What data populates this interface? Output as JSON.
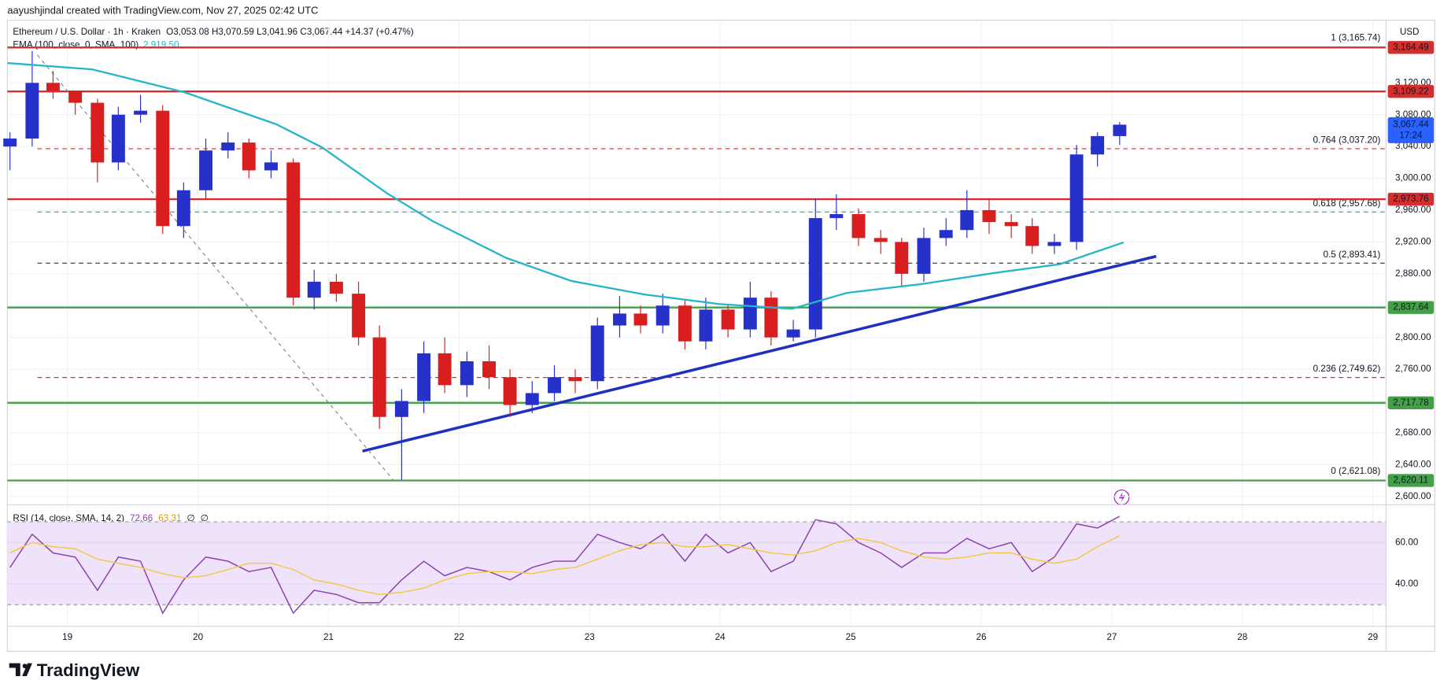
{
  "header": {
    "created_line": "aayushjindal created with TradingView.com, Nov 27, 2025 02:42 UTC"
  },
  "footer": {
    "brand": "TradingView"
  },
  "chart_data": [
    {
      "type": "candlestick",
      "title": "Ethereum / U.S. Dollar · 1h · Kraken",
      "ohlc_text": "O3,053.08 H3,070.59 L3,041.96 C3,067.44 +14.37 (+0.47%)",
      "y_unit": "USD",
      "last_price_label": "3,067.44",
      "countdown": "17:24",
      "up_color": "#2631c9",
      "down_color": "#d81e1e",
      "x": [
        18.56,
        18.73,
        18.89,
        19.06,
        19.23,
        19.39,
        19.56,
        19.73,
        19.89,
        20.06,
        20.23,
        20.39,
        20.56,
        20.73,
        20.89,
        21.06,
        21.23,
        21.39,
        21.56,
        21.73,
        21.89,
        22.06,
        22.23,
        22.39,
        22.56,
        22.73,
        22.89,
        23.06,
        23.23,
        23.39,
        23.56,
        23.73,
        23.89,
        24.06,
        24.23,
        24.39,
        24.56,
        24.73,
        24.89,
        25.06,
        25.23,
        25.39,
        25.56,
        25.73,
        25.89,
        26.06,
        26.23,
        26.39,
        26.56,
        26.73,
        26.89,
        27.06
      ],
      "open": [
        3040,
        3050,
        3120,
        3110,
        3095,
        3020,
        3080,
        3085,
        2940,
        2985,
        3035,
        3045,
        3010,
        3020,
        2850,
        2870,
        2855,
        2800,
        2700,
        2720,
        2780,
        2740,
        2770,
        2750,
        2715,
        2730,
        2750,
        2745,
        2815,
        2830,
        2815,
        2840,
        2795,
        2835,
        2810,
        2850,
        2800,
        2810,
        2950,
        2955,
        2925,
        2920,
        2880,
        2925,
        2935,
        2960,
        2945,
        2940,
        2915,
        2920,
        3030,
        3053.08
      ],
      "high": [
        3058,
        3160,
        3135,
        3110,
        3100,
        3090,
        3105,
        3092,
        2995,
        3050,
        3058,
        3050,
        3035,
        3025,
        2885,
        2880,
        2870,
        2815,
        2735,
        2795,
        2800,
        2782,
        2790,
        2760,
        2745,
        2765,
        2760,
        2825,
        2852,
        2840,
        2855,
        2848,
        2850,
        2842,
        2870,
        2858,
        2822,
        2975,
        2980,
        2962,
        2935,
        2925,
        2938,
        2950,
        2985,
        2975,
        2955,
        2950,
        2930,
        3042,
        3058,
        3070.59
      ],
      "low": [
        3010,
        3040,
        3100,
        3080,
        2995,
        3010,
        3070,
        2930,
        2925,
        2975,
        3025,
        3000,
        3000,
        2840,
        2835,
        2845,
        2790,
        2685,
        2621,
        2705,
        2730,
        2725,
        2735,
        2700,
        2705,
        2720,
        2730,
        2735,
        2800,
        2805,
        2805,
        2785,
        2785,
        2800,
        2800,
        2790,
        2795,
        2800,
        2935,
        2915,
        2905,
        2865,
        2870,
        2915,
        2925,
        2930,
        2925,
        2905,
        2905,
        2910,
        3015,
        3041.96
      ],
      "close": [
        3050,
        3120,
        3110,
        3095,
        3020,
        3080,
        3085,
        2940,
        2985,
        3035,
        3045,
        3010,
        3020,
        2850,
        2870,
        2855,
        2800,
        2700,
        2720,
        2780,
        2740,
        2770,
        2750,
        2715,
        2730,
        2750,
        2745,
        2815,
        2830,
        2815,
        2840,
        2795,
        2835,
        2810,
        2850,
        2800,
        2810,
        2950,
        2955,
        2925,
        2920,
        2880,
        2925,
        2935,
        2960,
        2945,
        2940,
        2915,
        2920,
        3030,
        3053.08,
        3067.44
      ],
      "series": [
        {
          "name": "EMA (100, close, 0, SMA, 100)",
          "color": "#26b5c9",
          "last_label": "2,919.50",
          "x": [
            18.54,
            19.19,
            19.9,
            20.6,
            20.95,
            21.45,
            21.8,
            22.36,
            22.86,
            23.42,
            23.99,
            24.55,
            24.97,
            25.54,
            26.1,
            26.6,
            27.09
          ],
          "values": [
            3145,
            3137,
            3108,
            3068,
            3039,
            2981,
            2946,
            2900,
            2871,
            2854,
            2842,
            2836,
            2856,
            2867,
            2881,
            2892,
            2919.5
          ]
        }
      ],
      "levels": [
        {
          "value": 3164.49,
          "label": "3,164.49",
          "color": "#d32f2f"
        },
        {
          "value": 3109.22,
          "label": "3,109.22",
          "color": "#d32f2f"
        },
        {
          "value": 2973.76,
          "label": "2,973.76",
          "color": "#d32f2f"
        },
        {
          "value": 2837.64,
          "label": "2,837.64",
          "color": "#43a047"
        },
        {
          "value": 2717.78,
          "label": "2,717.78",
          "color": "#43a047"
        },
        {
          "value": 2620.11,
          "label": "2,620.11",
          "color": "#43a047"
        }
      ],
      "fib": [
        {
          "value": 3165.74,
          "label": "1 (3,165.74)",
          "color": "#5b8def",
          "style": "none"
        },
        {
          "value": 3037.2,
          "label": "0.764 (3,037.20)",
          "color": "#d32f2f",
          "style": "dashed"
        },
        {
          "value": 2957.68,
          "label": "0.618 (2,957.68)",
          "color": "#26a69a",
          "style": "dashed"
        },
        {
          "value": 2893.41,
          "label": "0.5 (2,893.41)",
          "color": "#333333",
          "style": "dashed"
        },
        {
          "value": 2749.62,
          "label": "0.236 (2,749.62)",
          "color": "#d32f2f",
          "style": "dashed"
        },
        {
          "value": 2621.08,
          "label": "0 (2,621.08)",
          "color": "#555555",
          "style": "none"
        }
      ],
      "trendlines": [
        {
          "x": [
            21.26,
            27.34
          ],
          "values": [
            2657,
            2902
          ],
          "color": "#1f2fbf",
          "style": "solid"
        },
        {
          "x": [
            18.77,
            21.5
          ],
          "values": [
            3155,
            2620
          ],
          "color": "#888888",
          "style": "dashed"
        }
      ],
      "xlim": [
        18.54,
        29.1
      ],
      "ylim": [
        2589.6,
        3198.7
      ],
      "xticks": [
        19,
        20,
        21,
        22,
        23,
        24,
        25,
        26,
        27,
        28,
        29
      ],
      "yticks": [
        {
          "value": 2600,
          "label": "2,600.00"
        },
        {
          "value": 2640,
          "label": "2,640.00"
        },
        {
          "value": 2680,
          "label": "2,680.00"
        },
        {
          "value": 2720,
          "label": "2,720.00"
        },
        {
          "value": 2760,
          "label": "2,760.00"
        },
        {
          "value": 2800,
          "label": "2,800.00"
        },
        {
          "value": 2840,
          "label": "2,840.00"
        },
        {
          "value": 2880,
          "label": "2,880.00"
        },
        {
          "value": 2920,
          "label": "2,920.00"
        },
        {
          "value": 2960,
          "label": "2,960.00"
        },
        {
          "value": 3000,
          "label": "3,000.00"
        },
        {
          "value": 3040,
          "label": "3,040.00"
        },
        {
          "value": 3080,
          "label": "3,080.00"
        },
        {
          "value": 3120,
          "label": "3,120.00"
        }
      ],
      "grid": true
    },
    {
      "type": "line",
      "title": "RSI (14, close, SMA, 14, 2)",
      "extra_labels": [
        "∅",
        "∅"
      ],
      "x": [
        18.56,
        18.73,
        18.89,
        19.06,
        19.23,
        19.39,
        19.56,
        19.73,
        19.89,
        20.06,
        20.23,
        20.39,
        20.56,
        20.73,
        20.89,
        21.06,
        21.23,
        21.39,
        21.56,
        21.73,
        21.89,
        22.06,
        22.23,
        22.39,
        22.56,
        22.73,
        22.89,
        23.06,
        23.23,
        23.39,
        23.56,
        23.73,
        23.89,
        24.06,
        24.23,
        24.39,
        24.56,
        24.73,
        24.89,
        25.06,
        25.23,
        25.39,
        25.56,
        25.73,
        25.89,
        26.06,
        26.23,
        26.39,
        26.56,
        26.73,
        26.89,
        27.06
      ],
      "series": [
        {
          "name": "RSI",
          "color": "#8e44ad",
          "last_label": "72.66",
          "values": [
            48,
            64,
            55,
            53,
            37,
            53,
            51,
            26,
            42,
            53,
            51,
            46,
            48,
            26,
            37,
            35,
            31,
            31,
            42,
            51,
            44,
            48,
            46,
            42,
            48,
            51,
            51,
            64,
            60,
            57,
            64,
            51,
            64,
            55,
            60,
            46,
            51,
            71,
            69,
            60,
            55,
            48,
            55,
            55,
            62,
            57,
            60,
            46,
            53,
            69,
            67,
            72.66
          ]
        },
        {
          "name": "SMA",
          "color": "#f2c94c",
          "last_label": "63.31",
          "values": [
            55,
            60,
            58,
            57,
            52,
            50,
            48,
            45,
            43,
            44,
            47,
            50,
            50,
            47,
            42,
            40,
            37,
            35,
            36,
            38,
            42,
            45,
            46,
            46,
            45,
            47,
            48,
            52,
            56,
            59,
            60,
            58,
            58,
            59,
            57,
            55,
            54,
            56,
            60,
            62,
            60,
            56,
            53,
            52,
            53,
            55,
            55,
            52,
            50,
            52,
            58,
            63.31
          ]
        }
      ],
      "band": [
        30,
        70
      ],
      "band_color": "#efe3fb",
      "xlim": [
        18.54,
        29.1
      ],
      "ylim": [
        19.6,
        78.2
      ],
      "yticks": [
        {
          "value": 40,
          "label": "40.00"
        },
        {
          "value": 60,
          "label": "60.00"
        }
      ],
      "grid": true
    }
  ]
}
